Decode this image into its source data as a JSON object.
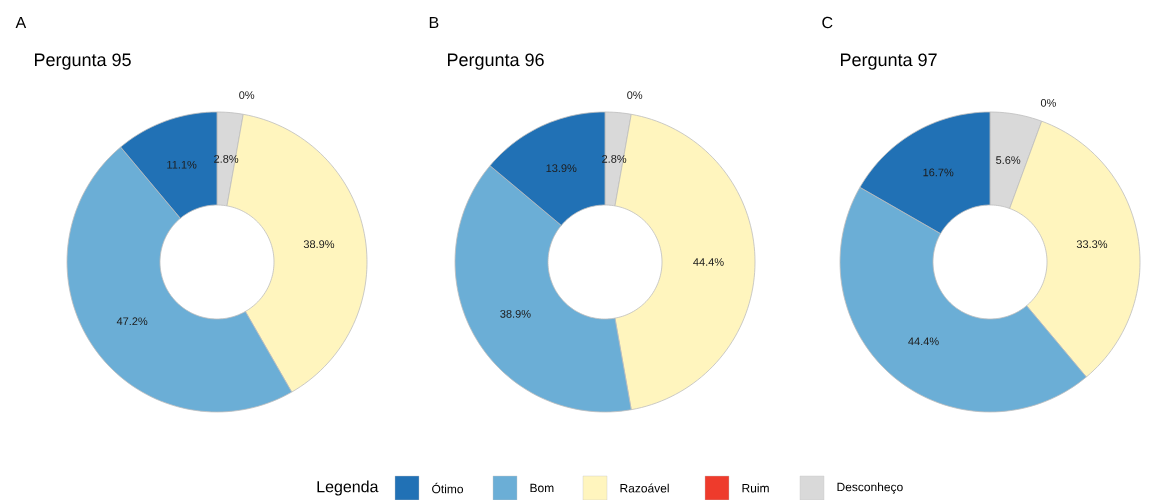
{
  "chart_data": [
    {
      "type": "donut",
      "title": "Pergunta 95",
      "annotations": [
        "A"
      ],
      "categories": [
        null,
        null,
        null,
        null,
        null
      ],
      "values": [
        11.1,
        47.2,
        38.9,
        0,
        2.8
      ],
      "value_labels": [
        "11.1%",
        "47.2%",
        "38.9%",
        "0%",
        "2.8%"
      ],
      "colors": [
        "#2171b5",
        "#6baed6",
        "#fff5be",
        "#ee3b2c",
        "#d9d9d9"
      ]
    },
    {
      "type": "donut",
      "title": "Pergunta 96",
      "annotations": [
        "B"
      ],
      "categories": [
        "Ótimo",
        "Bom",
        "Razoável",
        "Ruim",
        "Desconheço"
      ],
      "values": [
        13.9,
        38.9,
        44.4,
        0,
        2.8
      ],
      "value_labels": [
        "13.9%",
        "38.9%",
        "44.4%",
        "0%",
        "2.8%"
      ],
      "colors": [
        "#2171b5",
        "#6baed6",
        "#fff5be",
        "#ee3b2c",
        "#d9d9d9"
      ],
      "legend": "bottom",
      "legend_title": "Legenda"
    },
    {
      "type": "donut",
      "title": "Pergunta 97",
      "annotations": [
        "C"
      ],
      "categories": [
        null,
        null,
        null,
        null,
        null
      ],
      "values": [
        16.7,
        44.4,
        33.3,
        0,
        5.6
      ],
      "value_labels": [
        "16.7%",
        "44.4%",
        "33.3%",
        "0%",
        "5.6%"
      ],
      "colors": [
        "#2171b5",
        "#6baed6",
        "#fff5be",
        "#ee3b2c",
        "#d9d9d9"
      ]
    }
  ]
}
